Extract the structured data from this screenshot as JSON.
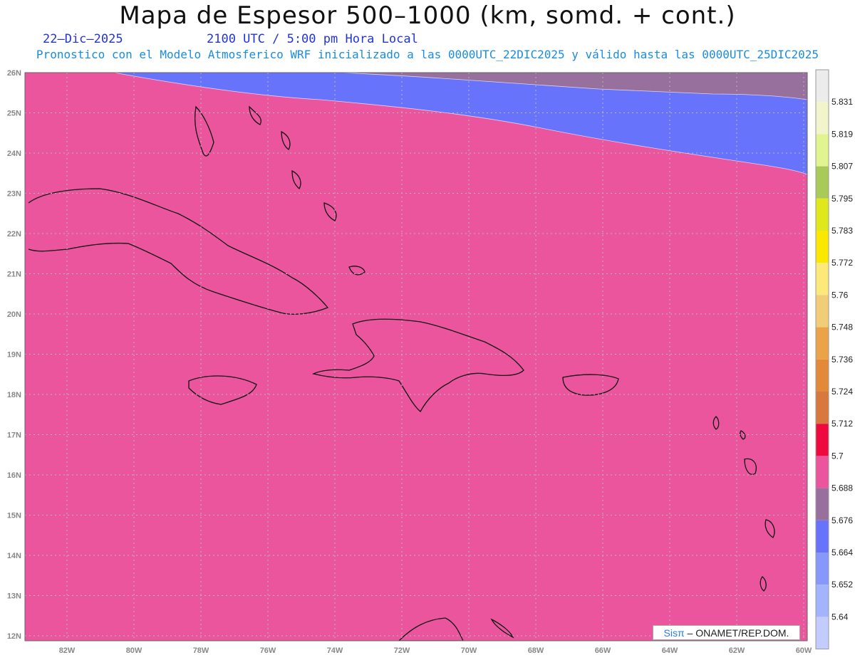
{
  "header": {
    "title": "Mapa de Espesor 500–1000 (km, somd. + cont.)",
    "date": "22–Dic–2025",
    "time": "2100 UTC / 5:00 pm Hora Local",
    "model_line": "Pronostico con el Modelo Atmosferico WRF inicializado a las 0000UTC_22DIC2025 y válido hasta las  0000UTC_25DIC2025"
  },
  "map": {
    "lat_labels": [
      "26N",
      "25N",
      "24N",
      "23N",
      "22N",
      "21N",
      "20N",
      "19N",
      "18N",
      "17N",
      "16N",
      "15N",
      "14N",
      "13N",
      "12N"
    ],
    "lon_labels": [
      "82W",
      "80W",
      "78W",
      "76W",
      "74W",
      "72W",
      "70W",
      "68W",
      "66W",
      "64W",
      "62W",
      "60W"
    ],
    "credit_prefix": "Sisπ",
    "credit_text": "– ONAMET/REP.DOM."
  },
  "colorbar": {
    "labels": [
      "5.831",
      "5.819",
      "5.807",
      "5.795",
      "5.783",
      "5.772",
      "5.76",
      "5.748",
      "5.736",
      "5.724",
      "5.712",
      "5.7",
      "5.688",
      "5.676",
      "5.664",
      "5.652",
      "5.64"
    ],
    "colors": [
      "#ececec",
      "#f2f4cc",
      "#e2f490",
      "#a8ca58",
      "#e0e81c",
      "#fbe800",
      "#fde97a",
      "#f2cd78",
      "#eaa447",
      "#e28a38",
      "#d8783c",
      "#ee0a3c",
      "#ea559e",
      "#98709e",
      "#6673fa",
      "#8797fa",
      "#a4b3fd",
      "#c2ccfd"
    ]
  },
  "bands": {
    "colors": [
      "#6673fa",
      "#98709e",
      "#ea559e",
      "#ee0a3c",
      "#d8783c",
      "#e28a38",
      "#eaa447",
      "#f2cd78",
      "#fde97a",
      "#fbe800",
      "#e0e81c"
    ]
  }
}
